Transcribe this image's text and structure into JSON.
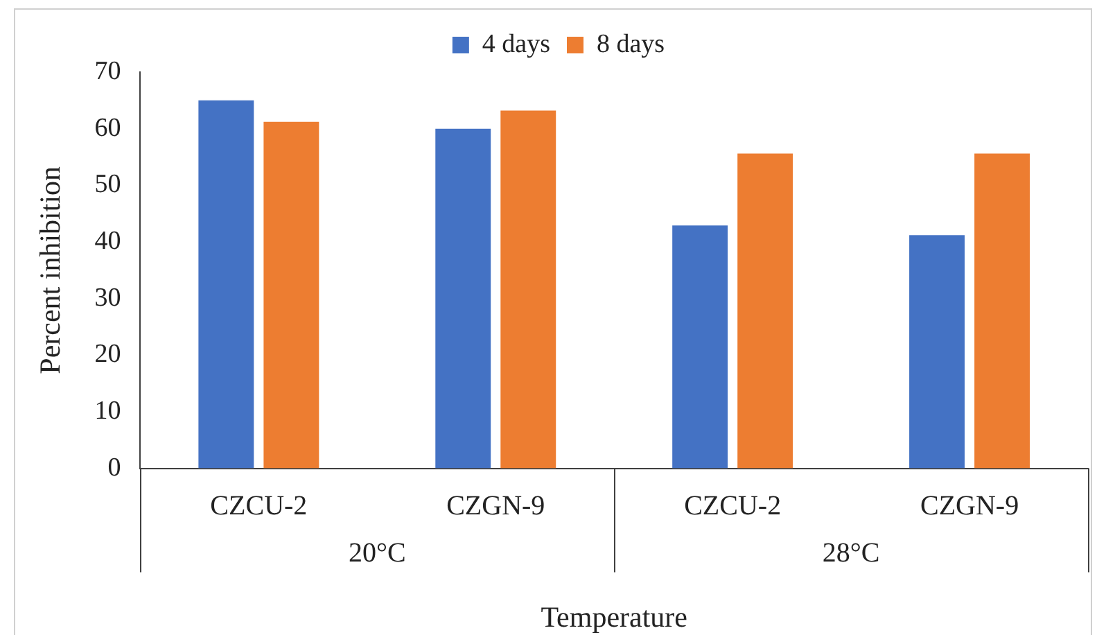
{
  "chart_data": {
    "type": "bar",
    "xlabel": "Temperature",
    "ylabel": "Percent inhibition",
    "categories": [
      "CZCU-2",
      "CZGN-9",
      "CZCU-2",
      "CZGN-9"
    ],
    "series": [
      {
        "name": "4 days",
        "color": "#4472c4",
        "values": [
          65,
          60,
          42.9,
          41.2
        ]
      },
      {
        "name": "8 days",
        "color": "#ed7d31",
        "values": [
          61.2,
          63.2,
          55.6,
          55.6
        ]
      }
    ],
    "annotations": [
      "20°C",
      "28°C"
    ],
    "ylim": [
      0,
      70
    ],
    "yticks": [
      0,
      10,
      20,
      30,
      40,
      50,
      60,
      70
    ],
    "grid": false,
    "legend": "top"
  }
}
